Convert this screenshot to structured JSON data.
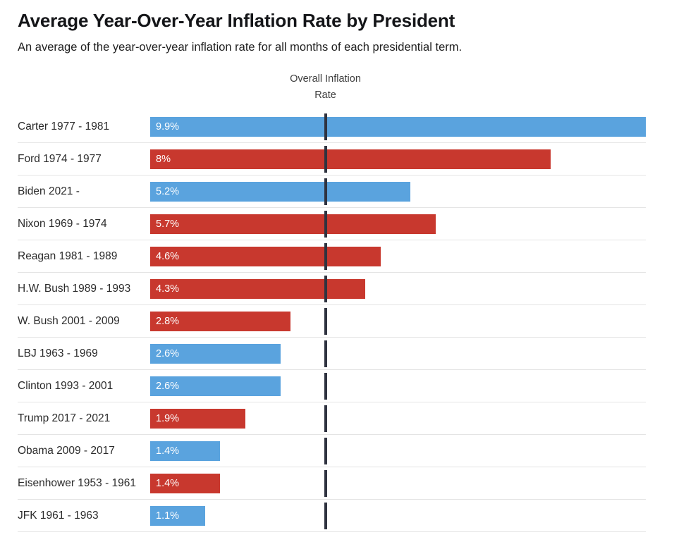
{
  "header": {
    "title": "Average Year-Over-Year Inflation Rate by President",
    "subtitle": "An average of the year-over-year inflation rate for all months of each presidential term."
  },
  "axis_label": {
    "line1": "Overall Inflation",
    "line2": "Rate"
  },
  "colors": {
    "democrat_blue": "#5AA3DE",
    "republican_red": "#C8382E",
    "reference_line": "#2F3340",
    "row_separator": "#E4E4E4"
  },
  "chart_data": {
    "type": "bar",
    "orientation": "horizontal",
    "title": "Average Year-Over-Year Inflation Rate by President",
    "subtitle": "An average of the year-over-year inflation rate for all months of each presidential term.",
    "xlabel": "",
    "ylabel": "",
    "xlim": [
      0,
      9.9
    ],
    "grid": false,
    "reference_line": {
      "label": "Overall Inflation Rate",
      "value": 3.5
    },
    "rows": [
      {
        "label": "Carter 1977 - 1981",
        "value": 9.9,
        "value_label": "9.9%",
        "party": "democrat"
      },
      {
        "label": "Ford 1974 - 1977",
        "value": 8,
        "value_label": "8%",
        "party": "republican"
      },
      {
        "label": "Biden 2021 -",
        "value": 5.2,
        "value_label": "5.2%",
        "party": "democrat"
      },
      {
        "label": "Nixon 1969 - 1974",
        "value": 5.7,
        "value_label": "5.7%",
        "party": "republican"
      },
      {
        "label": "Reagan 1981 - 1989",
        "value": 4.6,
        "value_label": "4.6%",
        "party": "republican"
      },
      {
        "label": "H.W. Bush 1989 - 1993",
        "value": 4.3,
        "value_label": "4.3%",
        "party": "republican"
      },
      {
        "label": "W. Bush 2001 - 2009",
        "value": 2.8,
        "value_label": "2.8%",
        "party": "republican"
      },
      {
        "label": "LBJ 1963 - 1969",
        "value": 2.6,
        "value_label": "2.6%",
        "party": "democrat"
      },
      {
        "label": "Clinton 1993 - 2001",
        "value": 2.6,
        "value_label": "2.6%",
        "party": "democrat"
      },
      {
        "label": "Trump 2017 - 2021",
        "value": 1.9,
        "value_label": "1.9%",
        "party": "republican"
      },
      {
        "label": "Obama 2009 - 2017",
        "value": 1.4,
        "value_label": "1.4%",
        "party": "democrat"
      },
      {
        "label": "Eisenhower 1953 - 1961",
        "value": 1.4,
        "value_label": "1.4%",
        "party": "republican"
      },
      {
        "label": "JFK 1961 - 1963",
        "value": 1.1,
        "value_label": "1.1%",
        "party": "democrat"
      }
    ]
  }
}
